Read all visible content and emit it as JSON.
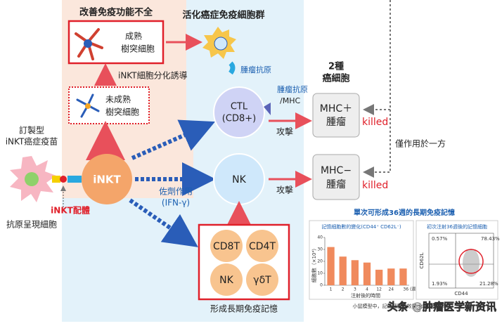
{
  "titles": {
    "improve": "改善免疫功能不全",
    "activate": "活化癌症免疫細胞群",
    "memory": "形成長期免疫記憶"
  },
  "mature_dc": [
    "成熟",
    "樹突細胞"
  ],
  "differentiation": "iNKT細胞分化誘導",
  "immature_dc": [
    "未成熟",
    "樹突細胞"
  ],
  "tumor_antigen": "腫瘤抗原",
  "vaccine": [
    "訂製型",
    "iNKT癌症疫苗"
  ],
  "inkt": "iNKT",
  "ligand": "iNKT配體",
  "apc": "抗原呈現細胞",
  "ctl": [
    "CTL",
    "(CD8+)"
  ],
  "nk": "NK",
  "adjuvant": [
    "佐劑作用",
    "(IFN-γ)"
  ],
  "antigen_mhc": [
    "腫瘤抗原",
    "/MHC"
  ],
  "cancer_types": [
    "2種",
    "癌細胞"
  ],
  "attack": [
    "攻擊",
    "攻擊"
  ],
  "mhc_pos": [
    "MHC＋",
    "腫瘤"
  ],
  "mhc_neg": [
    "MHC−",
    "腫瘤"
  ],
  "killed": [
    "killed",
    "killed"
  ],
  "one_side": "僅作用於一方",
  "memory_cells": [
    "CD8T",
    "CD4T",
    "NK",
    "γδT"
  ],
  "inset": {
    "title": "單次可形成36週的長期免疫記憶",
    "left_title": "記憶細胞數的變化(CD44⁺ CD62L⁻)",
    "type": "bar",
    "ylabel": "細胞數（×10⁴）",
    "xlabel": "注射後的時間",
    "categories": [
      "1",
      "2",
      "3",
      "4",
      "12",
      "24",
      "36 (週)"
    ],
    "values": [
      32,
      24,
      21,
      19,
      13,
      14,
      14
    ],
    "color": "#f08a5d",
    "ylim": [
      0,
      40
    ],
    "yticks": [
      0,
      10,
      20,
      30,
      40
    ],
    "right_title": "初次注射36週後的記憶細胞",
    "x_axis": "CD44",
    "y_axis": "CD62L",
    "quadrants": [
      "0.57%",
      "78.43%",
      "1.93%",
      "21.28%"
    ],
    "caption": "小鼠模型中，記憶細胞數效果（公司內部資料）"
  },
  "watermark": "头条 @肿瘤医学新资讯"
}
